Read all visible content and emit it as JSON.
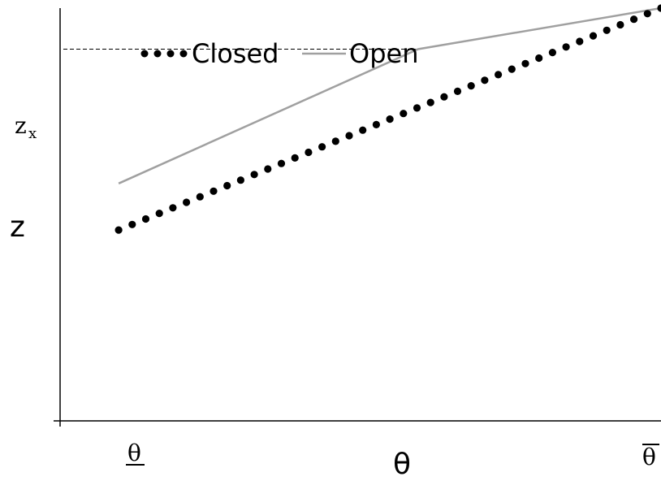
{
  "chart_data": {
    "type": "line",
    "xlabel": "θ",
    "ylabel": "z",
    "x_tick_labels": [
      {
        "label": "θ",
        "x": 0,
        "decoration": "underline"
      },
      {
        "label": "θ",
        "x": 1,
        "decoration": "overline"
      }
    ],
    "reference_line": {
      "label": "z",
      "subscript": "x",
      "y": 0.815,
      "style": "dashed"
    },
    "xlim": [
      -0.108,
      1.0
    ],
    "ylim": [
      -0.86,
      1.0
    ],
    "legend": {
      "placement": "top-left"
    },
    "grid": false,
    "series": [
      {
        "name": "Closed",
        "style": "dotted",
        "color": "#000000",
        "x": [
          0,
          1
        ],
        "y": [
          0.0,
          1.0
        ]
      },
      {
        "name": "Open",
        "style": "solid",
        "color": "#a0a0a0",
        "x": [
          0,
          0.552,
          1
        ],
        "y": [
          0.21,
          0.815,
          1.0
        ]
      }
    ]
  }
}
